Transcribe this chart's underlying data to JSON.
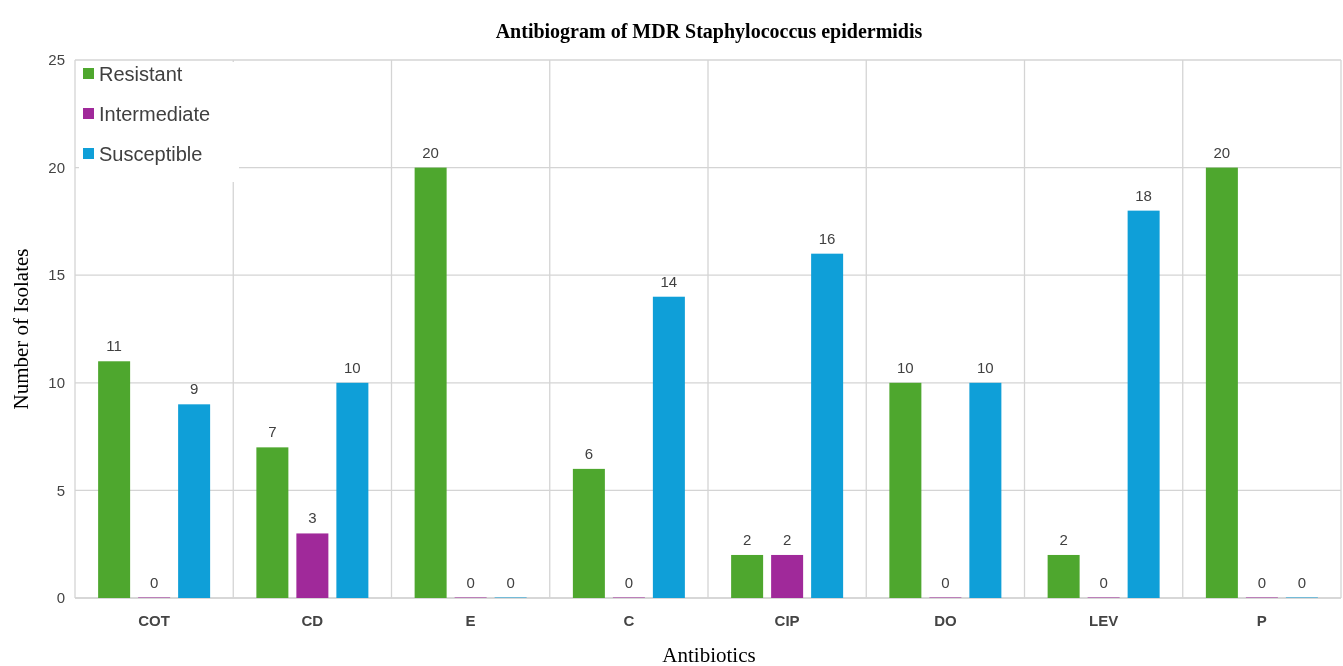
{
  "chart_data": {
    "type": "bar",
    "title": "Antibiogram of MDR Staphylococcus epidermidis",
    "xlabel": "Antibiotics",
    "ylabel": "Number of Isolates",
    "categories": [
      "COT",
      "CD",
      "E",
      "C",
      "CIP",
      "DO",
      "LEV",
      "P"
    ],
    "series": [
      {
        "name": "Resistant",
        "color": "#4ea72e",
        "values": [
          11,
          7,
          20,
          6,
          2,
          10,
          2,
          20
        ]
      },
      {
        "name": "Intermediate",
        "color": "#a0299a",
        "values": [
          0,
          3,
          0,
          0,
          2,
          0,
          0,
          0
        ]
      },
      {
        "name": "Susceptible",
        "color": "#0f9fd8",
        "values": [
          9,
          10,
          0,
          14,
          16,
          10,
          18,
          0
        ]
      }
    ],
    "ylim": [
      0,
      25
    ],
    "yticks": [
      0,
      5,
      10,
      15,
      20,
      25
    ],
    "grid": true,
    "legend": "top left",
    "data_labels": true
  }
}
